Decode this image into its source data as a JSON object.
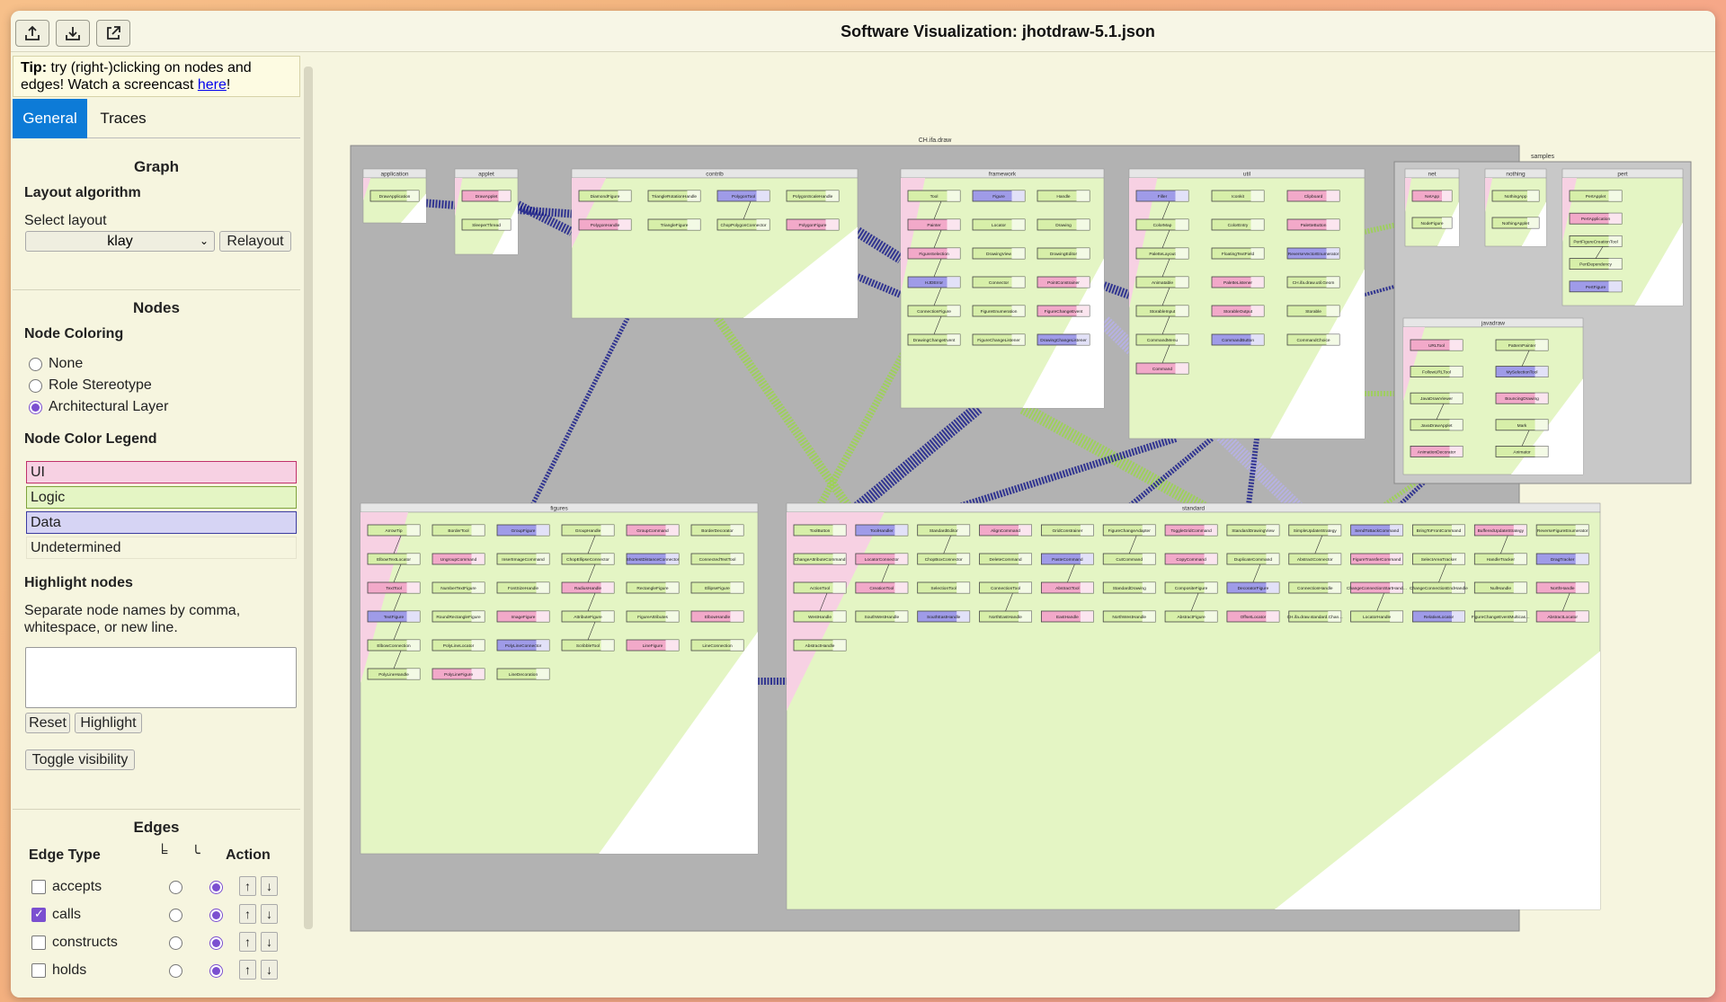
{
  "app": {
    "title": "Software Visualization: jhotdraw-5.1.json"
  },
  "toolbar": {
    "upload_icon": "upload-icon",
    "download_icon": "download-icon",
    "external_icon": "external-link-icon"
  },
  "tip": {
    "prefix": "Tip:",
    "text": " try (right-)clicking on nodes and edges! Watch a screencast ",
    "link": "here",
    "suffix": "!"
  },
  "tabs": [
    {
      "label": "General"
    },
    {
      "label": "Traces"
    }
  ],
  "graph": {
    "section_title": "Graph",
    "layout_heading": "Layout algorithm",
    "select_label": "Select layout",
    "selected_layout": "klay",
    "relayout_button": "Relayout"
  },
  "nodes": {
    "section_title": "Nodes",
    "coloring_heading": "Node Coloring",
    "coloring_options": [
      {
        "label": "None"
      },
      {
        "label": "Role Stereotype"
      },
      {
        "label": "Architectural Layer"
      }
    ],
    "legend_heading": "Node Color Legend",
    "legend": [
      {
        "label": "UI",
        "color": "#f7d1e3",
        "border": "#c0306b"
      },
      {
        "label": "Logic",
        "color": "#e4f5c4",
        "border": "#7ea23c"
      },
      {
        "label": "Data",
        "color": "#d6d4f4",
        "border": "#3b3ba1"
      },
      {
        "label": "Undetermined",
        "color": "#f6f5df",
        "border": "#e5e3cd"
      }
    ],
    "highlight_heading": "Highlight nodes",
    "highlight_hint": "Separate node names by comma, whitespace, or new line.",
    "reset_button": "Reset",
    "highlight_button": "Highlight",
    "toggle_button": "Toggle visibility"
  },
  "edges": {
    "section_title": "Edges",
    "col_type": "Edge Type",
    "col_r1": "╘",
    "col_r2": "╰",
    "col_action": "Action",
    "rows": [
      {
        "label": "accepts",
        "checked": false
      },
      {
        "label": "calls",
        "checked": true
      },
      {
        "label": "constructs",
        "checked": false
      },
      {
        "label": "holds",
        "checked": false
      }
    ]
  },
  "diagram": {
    "root_label": "CH.ifa.draw",
    "packages": [
      {
        "name": "application",
        "classes": [
          "DrawApplication"
        ]
      },
      {
        "name": "applet",
        "classes": [
          "DrawApplet",
          "SleeperThread"
        ]
      },
      {
        "name": "contrib",
        "classes": [
          "DiamondFigure",
          "TriangleRotationHandle",
          "PolygonTool",
          "PolygonScaleHandle",
          "PolygonHandle",
          "TriangleFigure",
          "ChopPolygonConnector",
          "PolygonFigure"
        ]
      },
      {
        "name": "framework",
        "classes": [
          "Tool",
          "Figure",
          "Handle",
          "Painter",
          "Locator",
          "Drawing",
          "FigureSelection",
          "DrawingView",
          "DrawingEditor",
          "HJDError",
          "Connector",
          "PointConstrainer",
          "ConnectionFigure",
          "FigureEnumeration",
          "FigureChangeEvent",
          "DrawingChangeEvent",
          "FigureChangeListener",
          "DrawingChangeListener"
        ]
      },
      {
        "name": "util",
        "classes": [
          "Filler",
          "Iconkit",
          "Clipboard",
          "ColorMap",
          "ColorEntry",
          "PaletteButton",
          "PaletteLayout",
          "FloatingTextField",
          "ReverseVectorEnumerator",
          "Animatable",
          "PaletteListener",
          "CH.ifa.draw.util.Geom",
          "StorableInput",
          "StorableOutput",
          "Storable",
          "CommandMenu",
          "CommandButton",
          "CommandChoice",
          "Command"
        ]
      },
      {
        "name": "samples",
        "classes": []
      },
      {
        "name": "net",
        "classes": [
          "NetApp",
          "NodeFigure"
        ]
      },
      {
        "name": "nothing",
        "classes": [
          "NothingApp",
          "NothingApplet"
        ]
      },
      {
        "name": "pert",
        "classes": [
          "PertApplet",
          "PertApplication",
          "PertFigureCreationTool",
          "PertDependency",
          "PertFigure"
        ]
      },
      {
        "name": "javadraw",
        "classes": [
          "URLTool",
          "PatternPainter",
          "FollowURLTool",
          "MySelectionTool",
          "JavaDrawViewer",
          "BouncingDrawing",
          "JavaDrawApplet",
          "Mark",
          "AnimationDecorator",
          "Animator"
        ]
      },
      {
        "name": "figures",
        "classes": [
          "ArrowTip",
          "BorderTool",
          "GroupFigure",
          "GroupHandle",
          "GroupCommand",
          "BorderDecorator",
          "ElbowTextLocator",
          "UngroupCommand",
          "InsertImageCommand",
          "ChopEllipseConnector",
          "ShortestDistanceConnector",
          "ConnectedTextTool",
          "TextTool",
          "NumberTextFigure",
          "FontSizeHandle",
          "RadiusHandle",
          "RectangleFigure",
          "EllipseFigure",
          "TextFigure",
          "RoundRectangleFigure",
          "ImageFigure",
          "AttributeFigure",
          "FigureAttributes",
          "ElbowHandle",
          "ElbowConnection",
          "PolyLineLocator",
          "PolyLineConnector",
          "ScribbleTool",
          "LineFigure",
          "LineConnection",
          "PolyLineHandle",
          "PolyLineFigure",
          "LineDecoration"
        ]
      },
      {
        "name": "standard",
        "classes": [
          "ToolButton",
          "ToolHandler",
          "StandardEditor",
          "AlignCommand",
          "GridConstrainer",
          "FigureChangeAdapter",
          "ToggleGridCommand",
          "StandardDrawingView",
          "SimpleUpdateStrategy",
          "SendToBackCommand",
          "BringToFrontCommand",
          "BufferedUpdateStrategy",
          "ReverseFigureEnumerator",
          "ChangeAttributeCommand",
          "LocatorConnector",
          "ChopBoxConnector",
          "DeleteCommand",
          "PasteCommand",
          "CutCommand",
          "CopyCommand",
          "DuplicateCommand",
          "AbstractConnector",
          "FigureTransferCommand",
          "SelectAreaTracker",
          "HandleTracker",
          "DragTracker",
          "ActionTool",
          "CreationTool",
          "SelectionTool",
          "ConnectionTool",
          "AbstractTool",
          "StandardDrawing",
          "CompositeFigure",
          "DecoratorFigure",
          "ConnectionHandle",
          "ChangeConnectionStartHandle",
          "ChangeConnectionEndHandle",
          "NullHandle",
          "NorthHandle",
          "WestHandle",
          "SouthWestHandle",
          "SouthEastHandle",
          "NorthEastHandle",
          "EastHandle",
          "NorthWestHandle",
          "AbstractFigure",
          "OffsetLocator",
          "CH.ifa.draw.standard.ChangeConnectionHandle",
          "LocatorHandle",
          "RelativeLocator",
          "FigureChangeEventMulticaster",
          "AbstractLocator",
          "AbstractHandle"
        ]
      }
    ]
  }
}
